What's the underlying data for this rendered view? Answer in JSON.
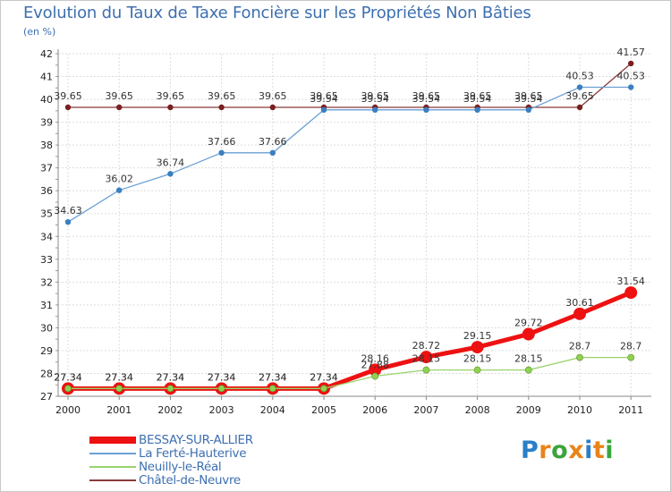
{
  "title": "Evolution du Taux de Taxe Foncière sur les Propriétés Non Bâties",
  "unit": "(en %)",
  "logo": {
    "letters": [
      "P",
      "r",
      "o",
      "x",
      "i",
      "t",
      "i"
    ],
    "colors": [
      "#2a7fc8",
      "#e8841a",
      "#3aa53a",
      "#e8841a",
      "#2a7fc8",
      "#e8841a",
      "#3aa53a"
    ]
  },
  "chart_data": {
    "type": "line",
    "title": "Evolution du Taux de Taxe Foncière sur les Propriétés Non Bâties",
    "ylabel": "(en %)",
    "x": [
      "2000",
      "2001",
      "2002",
      "2003",
      "2004",
      "2005",
      "2006",
      "2007",
      "2008",
      "2009",
      "2010",
      "2011"
    ],
    "ylim": [
      27,
      42
    ],
    "yticks": [
      27,
      28,
      29,
      30,
      31,
      32,
      33,
      34,
      35,
      36,
      37,
      38,
      39,
      40,
      41,
      42
    ],
    "grid": true,
    "legend_position": "bottom-left",
    "series": [
      {
        "name": "BESSAY-SUR-ALLIER",
        "color": "#ee1111",
        "values": [
          27.34,
          27.34,
          27.34,
          27.34,
          27.34,
          27.34,
          28.16,
          28.72,
          29.15,
          29.72,
          30.61,
          31.54
        ],
        "labels": [
          "27.34",
          "27.34",
          "27.34",
          "27.34",
          "27.34",
          "27.34",
          "28.16",
          "28.72",
          "29.15",
          "29.72",
          "30.61",
          "31.54"
        ]
      },
      {
        "name": "La Ferté-Hauterive",
        "color": "#6a9fd4",
        "values": [
          34.63,
          36.02,
          36.74,
          37.66,
          37.66,
          39.54,
          39.54,
          39.54,
          39.54,
          39.54,
          40.53,
          40.53
        ],
        "labels": [
          "34.63",
          "36.02",
          "36.74",
          "37.66",
          "37.66",
          "39.54",
          "39.54",
          "39.54",
          "39.54",
          "39.54",
          "40.53",
          "40.53"
        ]
      },
      {
        "name": "Neuilly-le-Réal",
        "color": "#99d36a",
        "values": [
          27.34,
          27.34,
          27.34,
          27.34,
          27.34,
          27.34,
          27.88,
          28.15,
          28.15,
          28.15,
          28.7,
          28.7
        ],
        "labels": [
          "27.34",
          "27.34",
          "27.34",
          "27.34",
          "27.34",
          "27.34",
          "27.88",
          "28.15",
          "28.15",
          "28.15",
          "28.7",
          "28.7"
        ]
      },
      {
        "name": "Châtel-de-Neuvre",
        "color": "#8b3a3a",
        "values": [
          39.65,
          39.65,
          39.65,
          39.65,
          39.65,
          39.65,
          39.65,
          39.65,
          39.65,
          39.65,
          39.65,
          41.57
        ],
        "labels": [
          "39.65",
          "39.65",
          "39.65",
          "39.65",
          "39.65",
          "39.65",
          "39.65",
          "39.65",
          "39.65",
          "39.65",
          "39.65",
          "41.57"
        ]
      }
    ]
  }
}
